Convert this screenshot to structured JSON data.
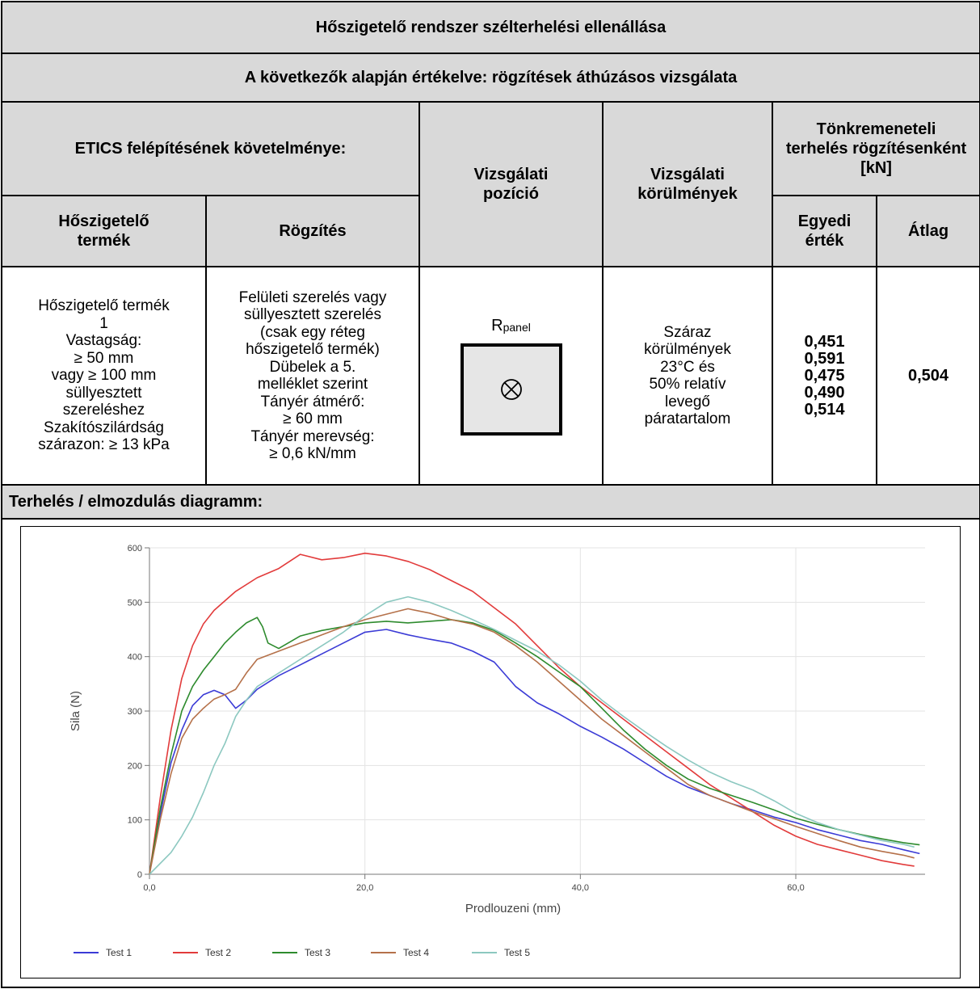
{
  "title": "Hőszigetelő rendszer szélterhelési ellenállása",
  "subtitle": "A következők alapján értékelve: rögzítések áthúzásos vizsgálata",
  "headers": {
    "etics": "ETICS felépítésének követelménye:",
    "position": "Vizsgálati pozíció",
    "conditions": "Vizsgálati körülmények",
    "failure_load": "Tönkremeneteli terhelés rögzítésenként [kN]",
    "insulation_product": "Hőszigetelő termék",
    "fixing": "Rögzítés",
    "single_value": "Egyedi érték",
    "average": "Átlag"
  },
  "row": {
    "insulation_lines": [
      "Hőszigetelő termék",
      "1",
      "Vastagság:",
      "≥ 50 mm",
      "vagy ≥ 100 mm",
      "süllyesztett",
      "szereléshez",
      "Szakítószilárdság",
      "szárazon: ≥ 13 kPa"
    ],
    "fixing_lines": [
      "Felületi szerelés vagy",
      "süllyesztett szerelés",
      "(csak egy réteg",
      "hőszigetelő termék)",
      "Dübelek a 5.",
      "melléklet szerint",
      "Tányér átmérő:",
      "≥ 60 mm",
      "Tányér merevség:",
      "≥ 0,6 kN/mm"
    ],
    "position_label": "R",
    "position_sub": "panel",
    "conditions_lines": [
      "Száraz",
      "körülmények",
      "23°C és",
      "50% relatív",
      "levegő",
      "páratartalom"
    ],
    "single_values": [
      "0,451",
      "0,591",
      "0,475",
      "0,490",
      "0,514"
    ],
    "average": "0,504"
  },
  "diagram_label": "Terhelés / elmozdulás diagramm:",
  "chart_data": {
    "type": "line",
    "xlabel": "Prodlouzeni (mm)",
    "ylabel": "Sila (N)",
    "xlim": [
      0,
      72
    ],
    "ylim": [
      0,
      600
    ],
    "xticks": [
      "0,0",
      "20,0",
      "40,0",
      "60,0"
    ],
    "yticks": [
      "0",
      "100",
      "200",
      "300",
      "400",
      "500",
      "600"
    ],
    "grid": true,
    "legend": "bottom-left",
    "series": [
      {
        "name": "Test 1",
        "color": "#3b3bd6",
        "points": [
          [
            0,
            0
          ],
          [
            1,
            110
          ],
          [
            2,
            205
          ],
          [
            3,
            265
          ],
          [
            4,
            310
          ],
          [
            5,
            330
          ],
          [
            6,
            338
          ],
          [
            7,
            330
          ],
          [
            8,
            305
          ],
          [
            9,
            320
          ],
          [
            10,
            340
          ],
          [
            12,
            365
          ],
          [
            14,
            385
          ],
          [
            16,
            405
          ],
          [
            18,
            425
          ],
          [
            20,
            445
          ],
          [
            22,
            450
          ],
          [
            24,
            440
          ],
          [
            26,
            432
          ],
          [
            28,
            425
          ],
          [
            30,
            410
          ],
          [
            32,
            390
          ],
          [
            34,
            345
          ],
          [
            36,
            315
          ],
          [
            38,
            295
          ],
          [
            40,
            272
          ],
          [
            42,
            252
          ],
          [
            44,
            230
          ],
          [
            46,
            205
          ],
          [
            48,
            180
          ],
          [
            50,
            160
          ],
          [
            52,
            145
          ],
          [
            54,
            130
          ],
          [
            56,
            118
          ],
          [
            58,
            105
          ],
          [
            60,
            95
          ],
          [
            62,
            82
          ],
          [
            64,
            72
          ],
          [
            66,
            62
          ],
          [
            68,
            55
          ],
          [
            70,
            45
          ],
          [
            71.5,
            38
          ]
        ]
      },
      {
        "name": "Test 2",
        "color": "#e23b3b",
        "points": [
          [
            0,
            0
          ],
          [
            1,
            140
          ],
          [
            2,
            265
          ],
          [
            3,
            360
          ],
          [
            4,
            420
          ],
          [
            5,
            460
          ],
          [
            6,
            485
          ],
          [
            8,
            520
          ],
          [
            10,
            545
          ],
          [
            12,
            562
          ],
          [
            14,
            588
          ],
          [
            16,
            578
          ],
          [
            18,
            582
          ],
          [
            20,
            590
          ],
          [
            22,
            585
          ],
          [
            24,
            575
          ],
          [
            26,
            560
          ],
          [
            28,
            540
          ],
          [
            30,
            520
          ],
          [
            32,
            490
          ],
          [
            34,
            460
          ],
          [
            36,
            420
          ],
          [
            38,
            380
          ],
          [
            40,
            345
          ],
          [
            42,
            315
          ],
          [
            44,
            285
          ],
          [
            46,
            255
          ],
          [
            48,
            225
          ],
          [
            50,
            195
          ],
          [
            52,
            165
          ],
          [
            54,
            140
          ],
          [
            56,
            115
          ],
          [
            58,
            90
          ],
          [
            60,
            70
          ],
          [
            62,
            55
          ],
          [
            64,
            45
          ],
          [
            66,
            35
          ],
          [
            68,
            25
          ],
          [
            70,
            18
          ],
          [
            71,
            15
          ]
        ]
      },
      {
        "name": "Test 3",
        "color": "#2e8b2e",
        "points": [
          [
            0,
            0
          ],
          [
            1,
            120
          ],
          [
            2,
            220
          ],
          [
            3,
            300
          ],
          [
            4,
            345
          ],
          [
            5,
            375
          ],
          [
            6,
            400
          ],
          [
            7,
            425
          ],
          [
            8,
            445
          ],
          [
            9,
            462
          ],
          [
            10,
            472
          ],
          [
            10.5,
            455
          ],
          [
            11,
            425
          ],
          [
            12,
            415
          ],
          [
            14,
            438
          ],
          [
            16,
            448
          ],
          [
            18,
            455
          ],
          [
            20,
            462
          ],
          [
            22,
            465
          ],
          [
            24,
            462
          ],
          [
            26,
            465
          ],
          [
            28,
            468
          ],
          [
            30,
            462
          ],
          [
            32,
            448
          ],
          [
            34,
            425
          ],
          [
            36,
            400
          ],
          [
            38,
            372
          ],
          [
            40,
            345
          ],
          [
            42,
            305
          ],
          [
            44,
            265
          ],
          [
            46,
            230
          ],
          [
            48,
            200
          ],
          [
            50,
            175
          ],
          [
            52,
            158
          ],
          [
            54,
            145
          ],
          [
            56,
            132
          ],
          [
            58,
            118
          ],
          [
            60,
            103
          ],
          [
            62,
            92
          ],
          [
            64,
            82
          ],
          [
            66,
            73
          ],
          [
            68,
            65
          ],
          [
            70,
            58
          ],
          [
            71.5,
            54
          ]
        ]
      },
      {
        "name": "Test 4",
        "color": "#b5714a",
        "points": [
          [
            0,
            0
          ],
          [
            1,
            100
          ],
          [
            2,
            185
          ],
          [
            3,
            250
          ],
          [
            4,
            285
          ],
          [
            5,
            305
          ],
          [
            6,
            322
          ],
          [
            7,
            330
          ],
          [
            8,
            340
          ],
          [
            9,
            370
          ],
          [
            10,
            395
          ],
          [
            12,
            410
          ],
          [
            14,
            425
          ],
          [
            16,
            440
          ],
          [
            18,
            455
          ],
          [
            20,
            468
          ],
          [
            22,
            478
          ],
          [
            24,
            488
          ],
          [
            26,
            480
          ],
          [
            28,
            468
          ],
          [
            30,
            460
          ],
          [
            32,
            445
          ],
          [
            34,
            420
          ],
          [
            36,
            390
          ],
          [
            38,
            355
          ],
          [
            40,
            320
          ],
          [
            42,
            285
          ],
          [
            44,
            255
          ],
          [
            46,
            225
          ],
          [
            48,
            195
          ],
          [
            50,
            165
          ],
          [
            52,
            145
          ],
          [
            54,
            130
          ],
          [
            56,
            115
          ],
          [
            58,
            102
          ],
          [
            60,
            88
          ],
          [
            62,
            75
          ],
          [
            64,
            62
          ],
          [
            66,
            50
          ],
          [
            68,
            42
          ],
          [
            70,
            35
          ],
          [
            71,
            30
          ]
        ]
      },
      {
        "name": "Test 5",
        "color": "#8cc8c0",
        "points": [
          [
            0,
            0
          ],
          [
            2,
            40
          ],
          [
            3,
            70
          ],
          [
            4,
            105
          ],
          [
            5,
            150
          ],
          [
            6,
            200
          ],
          [
            7,
            240
          ],
          [
            8,
            290
          ],
          [
            9,
            320
          ],
          [
            10,
            345
          ],
          [
            12,
            370
          ],
          [
            14,
            395
          ],
          [
            16,
            420
          ],
          [
            18,
            445
          ],
          [
            20,
            475
          ],
          [
            22,
            500
          ],
          [
            24,
            510
          ],
          [
            26,
            500
          ],
          [
            28,
            485
          ],
          [
            30,
            468
          ],
          [
            32,
            450
          ],
          [
            34,
            430
          ],
          [
            36,
            410
          ],
          [
            38,
            385
          ],
          [
            40,
            355
          ],
          [
            42,
            320
          ],
          [
            44,
            290
          ],
          [
            46,
            262
          ],
          [
            48,
            235
          ],
          [
            50,
            210
          ],
          [
            52,
            188
          ],
          [
            54,
            170
          ],
          [
            56,
            155
          ],
          [
            58,
            135
          ],
          [
            60,
            112
          ],
          [
            62,
            95
          ],
          [
            64,
            82
          ],
          [
            66,
            72
          ],
          [
            68,
            62
          ],
          [
            70,
            55
          ],
          [
            71,
            50
          ]
        ]
      }
    ]
  }
}
